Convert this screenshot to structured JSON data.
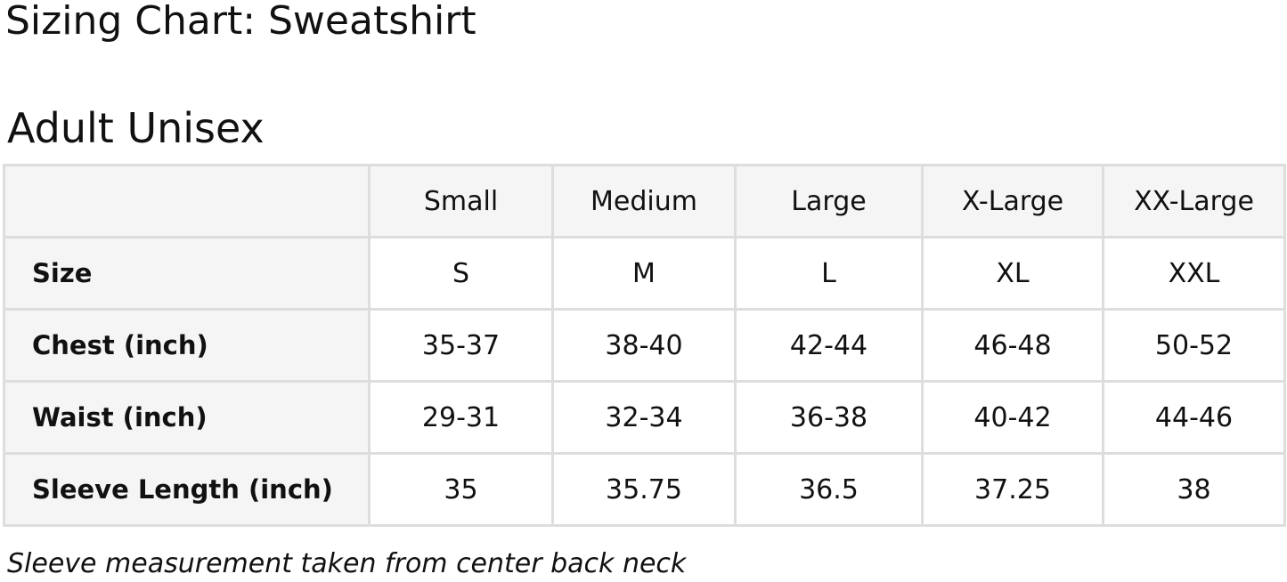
{
  "title": "Sizing Chart: Sweatshirt",
  "subtitle": "Adult Unisex",
  "table": {
    "columns": [
      "",
      "Small",
      "Medium",
      "Large",
      "X-Large",
      "XX-Large"
    ],
    "rows": [
      {
        "label": "Size",
        "values": [
          "S",
          "M",
          "L",
          "XL",
          "XXL"
        ]
      },
      {
        "label": "Chest (inch)",
        "values": [
          "35-37",
          "38-40",
          "42-44",
          "46-48",
          "50-52"
        ]
      },
      {
        "label": "Waist (inch)",
        "values": [
          "29-31",
          "32-34",
          "36-38",
          "40-42",
          "44-46"
        ]
      },
      {
        "label": "Sleeve Length (inch)",
        "values": [
          "35",
          "35.75",
          "36.5",
          "37.25",
          "38"
        ]
      }
    ]
  },
  "note": "Sleeve measurement taken from center back neck",
  "colors": {
    "header_bg": "#f5f5f5",
    "border": "#dddddd"
  }
}
